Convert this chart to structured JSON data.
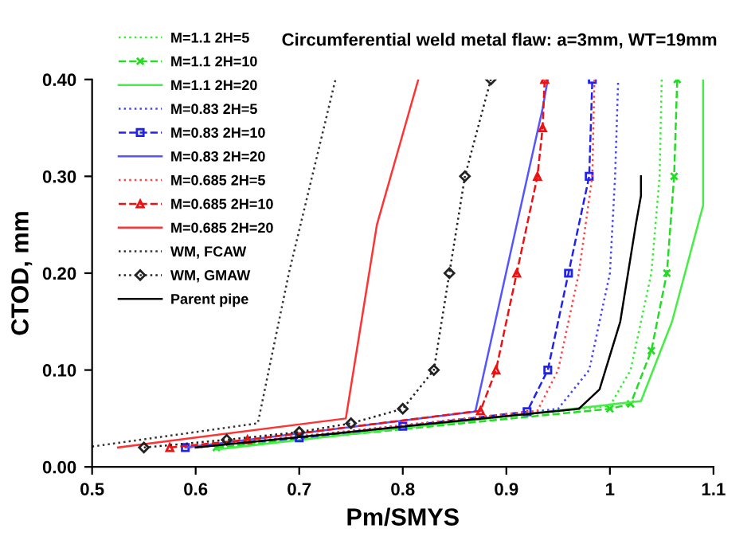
{
  "chart_data": {
    "type": "line",
    "title": "Circumferential weld metal flaw: a=3mm, WT=19mm",
    "xlabel": "Pm/SMYS",
    "ylabel": "CTOD, mm",
    "xlim": [
      0.5,
      1.1
    ],
    "xticks": [
      0.5,
      0.6,
      0.7,
      0.8,
      0.9,
      {
        "value": 1.0,
        "label": "1"
      },
      1.1
    ],
    "ylim": [
      0,
      0.4
    ],
    "yticks": [
      {
        "value": 0,
        "label": "0.00"
      },
      {
        "value": 0.1,
        "label": "0.10"
      },
      {
        "value": 0.2,
        "label": "0.20"
      },
      {
        "value": 0.3,
        "label": "0.30"
      },
      {
        "value": 0.4,
        "label": "0.40"
      }
    ],
    "grid": false,
    "legend": "top left",
    "series": [
      {
        "name": "M=1.1 2H=5",
        "color": "#33ee33",
        "line_style": "dotted",
        "marker": "none",
        "x": [
          0.62,
          1.0,
          1.02,
          1.04,
          1.048,
          1.05
        ],
        "values": [
          0.02,
          0.063,
          0.1,
          0.2,
          0.3,
          0.4
        ]
      },
      {
        "name": "M=1.1 2H=10",
        "color": "#22dd22",
        "line_style": "dashed",
        "marker": "cross",
        "x": [
          0.62,
          1.0,
          1.02,
          1.04,
          1.055,
          1.062,
          1.065
        ],
        "values": [
          0.02,
          0.06,
          0.065,
          0.12,
          0.2,
          0.3,
          0.4
        ]
      },
      {
        "name": "M=1.1 2H=20",
        "color": "#44ee44",
        "line_style": "solid",
        "marker": "none",
        "x": [
          0.62,
          1.03,
          1.06,
          1.085,
          1.09,
          1.09
        ],
        "values": [
          0.018,
          0.068,
          0.15,
          0.25,
          0.27,
          0.4
        ]
      },
      {
        "name": "M=0.83 2H=5",
        "color": "#4444ff",
        "line_style": "dotted",
        "marker": "none",
        "x": [
          0.6,
          0.95,
          0.98,
          1.0,
          1.005,
          1.008
        ],
        "values": [
          0.02,
          0.06,
          0.1,
          0.2,
          0.3,
          0.4
        ]
      },
      {
        "name": "M=0.83 2H=10",
        "color": "#2222ee",
        "line_style": "dashed",
        "marker": "square",
        "x": [
          0.59,
          0.7,
          0.8,
          0.92,
          0.94,
          0.96,
          0.98,
          0.983
        ],
        "values": [
          0.02,
          0.03,
          0.042,
          0.057,
          0.1,
          0.2,
          0.3,
          0.4
        ]
      },
      {
        "name": "M=0.83 2H=20",
        "color": "#5555ff",
        "line_style": "solid",
        "marker": "none",
        "x": [
          0.59,
          0.87,
          0.91,
          0.935,
          0.94
        ],
        "values": [
          0.02,
          0.057,
          0.25,
          0.37,
          0.4
        ]
      },
      {
        "name": "M=0.685 2H=5",
        "color": "#ff4444",
        "line_style": "dotted",
        "marker": "none",
        "x": [
          0.6,
          0.93,
          0.95,
          0.97,
          0.983,
          0.985
        ],
        "values": [
          0.02,
          0.058,
          0.1,
          0.2,
          0.3,
          0.4
        ]
      },
      {
        "name": "M=0.685 2H=10",
        "color": "#ee1111",
        "line_style": "dashed",
        "marker": "triangle",
        "x": [
          0.575,
          0.65,
          0.875,
          0.89,
          0.91,
          0.93,
          0.935,
          0.937
        ],
        "values": [
          0.02,
          0.028,
          0.058,
          0.1,
          0.2,
          0.3,
          0.35,
          0.4
        ]
      },
      {
        "name": "M=0.685 2H=20",
        "color": "#ff3333",
        "line_style": "solid",
        "marker": "none",
        "x": [
          0.525,
          0.745,
          0.76,
          0.775,
          0.815
        ],
        "values": [
          0.02,
          0.05,
          0.15,
          0.25,
          0.4
        ]
      },
      {
        "name": "WM, FCAW",
        "color": "#333333",
        "line_style": "dotted",
        "marker": "none",
        "x": [
          0.5,
          0.66,
          0.69,
          0.735
        ],
        "values": [
          0.021,
          0.045,
          0.2,
          0.4
        ]
      },
      {
        "name": "WM, GMAW",
        "color": "#222222",
        "line_style": "dotted",
        "marker": "diamond",
        "x": [
          0.55,
          0.63,
          0.7,
          0.75,
          0.8,
          0.83,
          0.845,
          0.86,
          0.885
        ],
        "values": [
          0.02,
          0.028,
          0.036,
          0.045,
          0.06,
          0.1,
          0.2,
          0.3,
          0.4
        ]
      },
      {
        "name": "Parent pipe",
        "color": "#000000",
        "line_style": "solid",
        "marker": "none",
        "x": [
          0.6,
          0.97,
          0.99,
          1.01,
          1.025,
          1.03,
          1.03
        ],
        "values": [
          0.02,
          0.06,
          0.08,
          0.15,
          0.25,
          0.28,
          0.3
        ]
      }
    ]
  }
}
